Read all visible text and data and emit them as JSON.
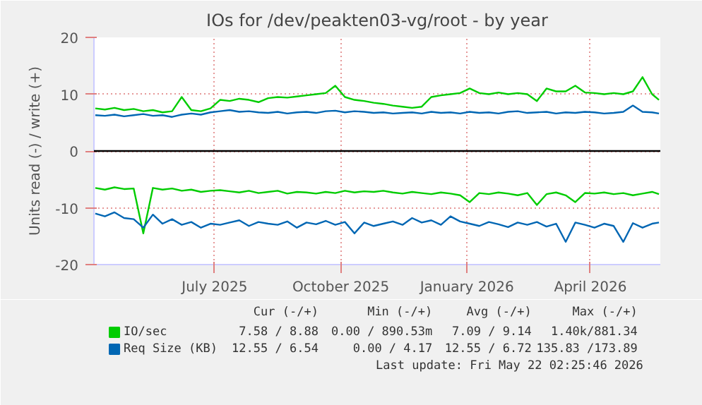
{
  "chart_data": {
    "type": "line",
    "title": "IOs for /dev/peakten03-vg/root - by year",
    "ylabel": "Units read (-) / write (+)",
    "x": [
      "2025-04-05",
      "2025-04-12",
      "2025-04-19",
      "2025-04-26",
      "2025-05-03",
      "2025-05-10",
      "2025-05-17",
      "2025-05-24",
      "2025-05-31",
      "2025-06-07",
      "2025-06-14",
      "2025-06-21",
      "2025-06-28",
      "2025-07-05",
      "2025-07-12",
      "2025-07-19",
      "2025-07-26",
      "2025-08-02",
      "2025-08-09",
      "2025-08-16",
      "2025-08-23",
      "2025-08-30",
      "2025-09-06",
      "2025-09-13",
      "2025-09-20",
      "2025-09-27",
      "2025-10-04",
      "2025-10-11",
      "2025-10-18",
      "2025-10-25",
      "2025-11-01",
      "2025-11-08",
      "2025-11-15",
      "2025-11-22",
      "2025-11-29",
      "2025-12-06",
      "2025-12-13",
      "2025-12-20",
      "2025-12-27",
      "2026-01-03",
      "2026-01-10",
      "2026-01-17",
      "2026-01-24",
      "2026-01-31",
      "2026-02-07",
      "2026-02-14",
      "2026-02-21",
      "2026-02-28",
      "2026-03-07",
      "2026-03-14",
      "2026-03-21",
      "2026-03-28",
      "2026-04-04",
      "2026-04-11",
      "2026-04-18",
      "2026-04-25",
      "2026-05-02",
      "2026-05-09",
      "2026-05-16",
      "2026-05-21"
    ],
    "series": [
      {
        "name": "IO/sec",
        "color": "#00cc00",
        "values": [
          7.5,
          7.3,
          7.6,
          7.2,
          7.4,
          7.0,
          7.2,
          6.8,
          7.0,
          9.5,
          7.2,
          7.0,
          7.5,
          9.0,
          8.8,
          9.2,
          9.0,
          8.6,
          9.3,
          9.5,
          9.4,
          9.6,
          9.8,
          10.0,
          10.2,
          11.5,
          9.5,
          9.0,
          8.8,
          8.5,
          8.3,
          8.0,
          7.8,
          7.6,
          7.8,
          9.5,
          9.8,
          10.0,
          10.2,
          11.0,
          10.2,
          10.0,
          10.3,
          10.0,
          10.2,
          10.0,
          8.8,
          11.0,
          10.5,
          10.5,
          11.5,
          10.3,
          10.2,
          10.0,
          10.2,
          10.0,
          10.5,
          13.0,
          10.0,
          9.0
        ]
      },
      {
        "color": "#00cc00",
        "values": [
          -6.5,
          -6.8,
          -6.4,
          -6.7,
          -6.6,
          -14.5,
          -6.5,
          -6.8,
          -6.6,
          -7.0,
          -6.8,
          -7.2,
          -7.0,
          -6.9,
          -7.1,
          -7.3,
          -7.0,
          -7.4,
          -7.2,
          -7.0,
          -7.5,
          -7.2,
          -7.3,
          -7.5,
          -7.2,
          -7.4,
          -7.0,
          -7.3,
          -7.1,
          -7.2,
          -7.0,
          -7.3,
          -7.5,
          -7.2,
          -7.4,
          -7.6,
          -7.3,
          -7.5,
          -7.8,
          -9.0,
          -7.4,
          -7.6,
          -7.3,
          -7.5,
          -7.8,
          -7.4,
          -9.5,
          -7.6,
          -7.3,
          -7.8,
          -9.0,
          -7.4,
          -7.5,
          -7.3,
          -7.6,
          -7.4,
          -7.8,
          -7.5,
          -7.2,
          -7.6
        ]
      },
      {
        "name": "Req Size (KB)",
        "color": "#0066b3",
        "values": [
          6.3,
          6.2,
          6.4,
          6.1,
          6.3,
          6.5,
          6.2,
          6.3,
          6.0,
          6.4,
          6.6,
          6.4,
          6.8,
          7.0,
          7.2,
          6.9,
          7.0,
          6.8,
          6.7,
          6.9,
          6.6,
          6.8,
          6.9,
          6.7,
          7.0,
          7.1,
          6.8,
          7.0,
          6.9,
          6.7,
          6.8,
          6.6,
          6.7,
          6.8,
          6.6,
          6.9,
          6.7,
          6.8,
          6.6,
          6.9,
          6.7,
          6.8,
          6.6,
          6.9,
          7.0,
          6.7,
          6.8,
          6.9,
          6.6,
          6.8,
          6.7,
          6.9,
          6.8,
          6.6,
          6.7,
          6.9,
          8.0,
          6.9,
          6.8,
          6.6
        ]
      },
      {
        "color": "#0066b3",
        "values": [
          -11.0,
          -11.5,
          -10.8,
          -11.8,
          -12.0,
          -13.5,
          -11.2,
          -12.8,
          -12.0,
          -13.0,
          -12.5,
          -13.5,
          -12.8,
          -13.0,
          -12.6,
          -12.2,
          -13.2,
          -12.5,
          -12.8,
          -13.0,
          -12.4,
          -13.5,
          -12.6,
          -12.9,
          -12.3,
          -13.0,
          -12.5,
          -14.5,
          -12.6,
          -13.2,
          -12.8,
          -12.4,
          -13.0,
          -11.8,
          -12.6,
          -12.2,
          -13.0,
          -11.5,
          -12.4,
          -12.8,
          -13.2,
          -12.5,
          -12.9,
          -13.4,
          -12.6,
          -13.0,
          -12.5,
          -13.3,
          -12.8,
          -16.0,
          -12.6,
          -13.0,
          -13.5,
          -12.8,
          -13.2,
          -16.0,
          -12.7,
          -13.5,
          -12.8,
          -12.6
        ]
      }
    ],
    "xlim": [
      "2025-04-04",
      "2026-05-22"
    ],
    "xticks": [
      {
        "value": "2025-07-01",
        "label": "July 2025"
      },
      {
        "value": "2025-10-01",
        "label": "October 2025"
      },
      {
        "value": "2026-01-01",
        "label": "January 2026"
      },
      {
        "value": "2026-04-01",
        "label": "April 2026"
      }
    ],
    "ylim": [
      -20,
      20
    ],
    "yticks": [
      -20,
      -10,
      0,
      10,
      20
    ],
    "grid": true,
    "legend": "bottom",
    "ref_lines": [
      {
        "axis": "y",
        "value": 0,
        "color": "#000000"
      }
    ],
    "annotations": [
      "Cur (-/+)",
      "Min (-/+)",
      "Avg (-/+)",
      "Max (-/+)",
      "7.58 / 8.88",
      "0.00 / 890.53m",
      "7.09 / 9.14",
      "1.40k/881.34",
      "12.55 / 6.54",
      "0.00 / 4.17",
      "12.55 / 6.72",
      "135.83 /173.89",
      "Last update: Fri May 22 02:25:46 2026"
    ]
  }
}
